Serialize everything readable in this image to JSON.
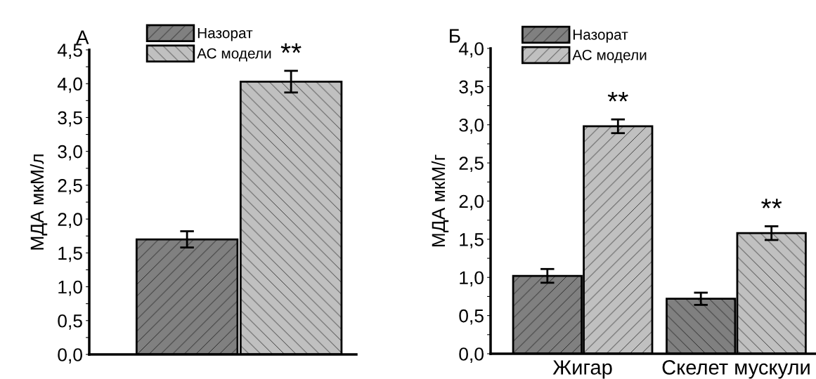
{
  "chart_data": [
    {
      "type": "bar",
      "title": "А",
      "ylabel": "МДА мкМ/л",
      "categories": [
        null
      ],
      "series": [
        {
          "name": "Назорат",
          "color": "#808080",
          "values": [
            1.7
          ],
          "errors": [
            0.12
          ]
        },
        {
          "name": "АС модели",
          "color": "#c0c0c0",
          "values": [
            4.03
          ],
          "errors": [
            0.16
          ]
        }
      ],
      "ylim": [
        0,
        4.5
      ],
      "yticks": [
        {
          "value": 0,
          "label": "0,0"
        },
        {
          "value": 0.25,
          "label": null
        },
        {
          "value": 0.5,
          "label": "0,5"
        },
        {
          "value": 0.75,
          "label": null
        },
        {
          "value": 1,
          "label": "1,0"
        },
        {
          "value": 1.25,
          "label": null
        },
        {
          "value": 1.5,
          "label": "1,5"
        },
        {
          "value": 1.75,
          "label": null
        },
        {
          "value": 2,
          "label": "2,0"
        },
        {
          "value": 2.25,
          "label": null
        },
        {
          "value": 2.5,
          "label": "2,5"
        },
        {
          "value": 2.75,
          "label": null
        },
        {
          "value": 3,
          "label": "3,0"
        },
        {
          "value": 3.25,
          "label": null
        },
        {
          "value": 3.5,
          "label": "3,5"
        },
        {
          "value": 3.75,
          "label": null
        },
        {
          "value": 4,
          "label": "4,0"
        },
        {
          "value": 4.25,
          "label": null
        },
        {
          "value": 4.5,
          "label": "4,5"
        }
      ],
      "annotations": [
        "**"
      ],
      "legend": "top",
      "grid": false
    },
    {
      "type": "bar",
      "title": "Б",
      "ylabel": "МДА мкМ/г",
      "categories": [
        "Жигар",
        "Скелет мускули"
      ],
      "series": [
        {
          "name": "Назорат",
          "color": "#808080",
          "values": [
            1.02,
            0.72
          ],
          "errors": [
            0.09,
            0.08
          ]
        },
        {
          "name": "АС модели",
          "color": "#c0c0c0",
          "values": [
            2.98,
            1.58
          ],
          "errors": [
            0.09,
            0.09
          ]
        }
      ],
      "ylim": [
        0,
        4.0
      ],
      "yticks": [
        {
          "value": 0,
          "label": "0,0"
        },
        {
          "value": 0.25,
          "label": null
        },
        {
          "value": 0.5,
          "label": "0,5"
        },
        {
          "value": 0.75,
          "label": null
        },
        {
          "value": 1,
          "label": "1,0"
        },
        {
          "value": 1.25,
          "label": null
        },
        {
          "value": 1.5,
          "label": "1,5"
        },
        {
          "value": 1.75,
          "label": null
        },
        {
          "value": 2,
          "label": "2,0"
        },
        {
          "value": 2.25,
          "label": null
        },
        {
          "value": 2.5,
          "label": "2,5"
        },
        {
          "value": 2.75,
          "label": null
        },
        {
          "value": 3,
          "label": "3,0"
        },
        {
          "value": 3.25,
          "label": null
        },
        {
          "value": 3.5,
          "label": "3,5"
        },
        {
          "value": 3.75,
          "label": null
        },
        {
          "value": 4,
          "label": "4,0"
        }
      ],
      "annotations": [
        "**",
        "**"
      ],
      "legend": "top left",
      "grid": false
    }
  ]
}
